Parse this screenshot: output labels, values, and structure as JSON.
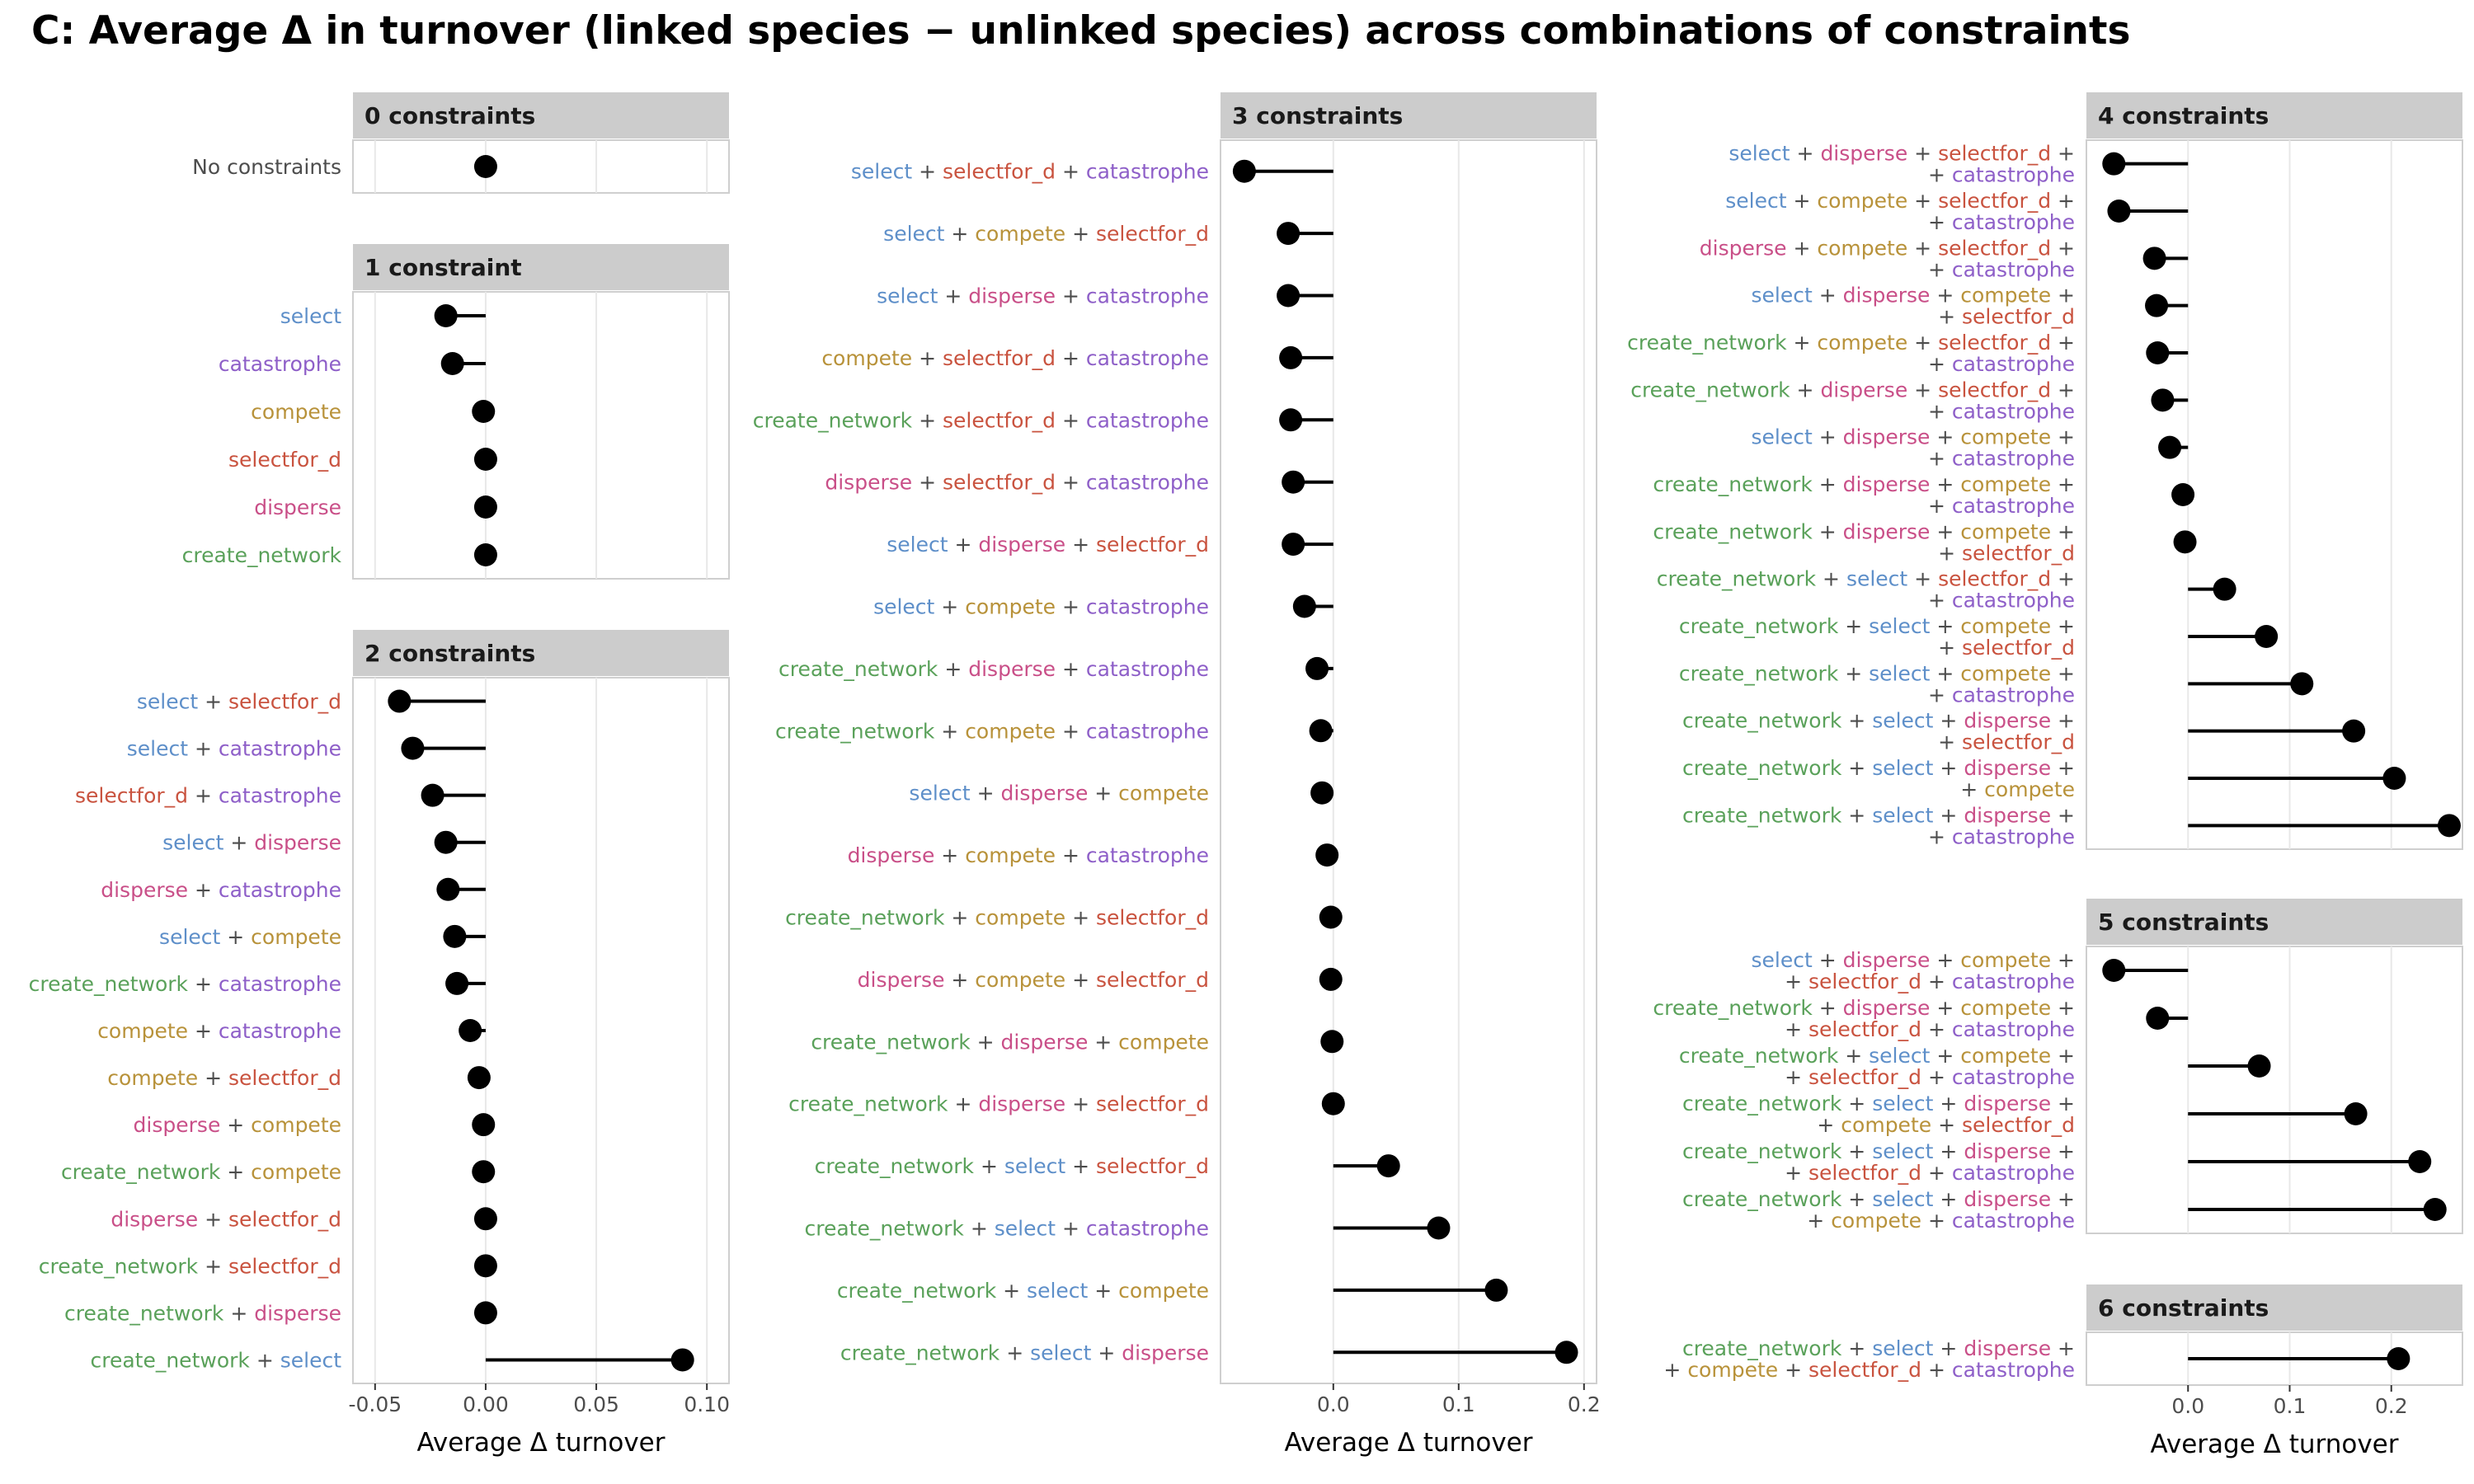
{
  "title": "C: Average Δ in turnover (linked species − unlinked species) across combinations of constraints",
  "colors": {
    "select": "#5e8fc9",
    "catastrophe": "#8e5fc8",
    "compete": "#b8923a",
    "selectfor_d": "#c9533f",
    "disperse": "#c94f88",
    "create_network": "#5aa15a",
    "plus": "#4d4d4d",
    "plain": "#4d4d4d",
    "strip": "#cccccc",
    "grid": "#e8e8e8",
    "border": "#cfcfcf",
    "point": "#000000"
  },
  "x_axis_label": "Average Δ turnover",
  "chart_data": [
    {
      "type": "lollipop",
      "column": "left",
      "facet": "0 constraints",
      "xlim": [
        -0.06,
        0.11
      ],
      "ticks": [],
      "tick_labels": [],
      "gridlines": [
        -0.05,
        0.0,
        0.05,
        0.1
      ],
      "rows": [
        {
          "terms": [
            "No constraints"
          ],
          "value": 0.0
        }
      ]
    },
    {
      "type": "lollipop",
      "column": "left",
      "facet": "1 constraint",
      "xlim": [
        -0.06,
        0.11
      ],
      "ticks": [],
      "tick_labels": [],
      "gridlines": [
        -0.05,
        0.0,
        0.05,
        0.1
      ],
      "rows": [
        {
          "terms": [
            "select"
          ],
          "value": -0.018
        },
        {
          "terms": [
            "catastrophe"
          ],
          "value": -0.015
        },
        {
          "terms": [
            "compete"
          ],
          "value": -0.001
        },
        {
          "terms": [
            "selectfor_d"
          ],
          "value": 0.0
        },
        {
          "terms": [
            "disperse"
          ],
          "value": 0.0
        },
        {
          "terms": [
            "create_network"
          ],
          "value": 0.0
        }
      ]
    },
    {
      "type": "lollipop",
      "column": "left",
      "facet": "2 constraints",
      "xlim": [
        -0.06,
        0.11
      ],
      "ticks": [
        -0.05,
        0.0,
        0.05,
        0.1
      ],
      "tick_labels": [
        "-0.05",
        "0.00",
        "0.05",
        "0.10"
      ],
      "gridlines": [
        -0.05,
        0.0,
        0.05,
        0.1
      ],
      "rows": [
        {
          "terms": [
            "select",
            "selectfor_d"
          ],
          "value": -0.039
        },
        {
          "terms": [
            "select",
            "catastrophe"
          ],
          "value": -0.033
        },
        {
          "terms": [
            "selectfor_d",
            "catastrophe"
          ],
          "value": -0.024
        },
        {
          "terms": [
            "select",
            "disperse"
          ],
          "value": -0.018
        },
        {
          "terms": [
            "disperse",
            "catastrophe"
          ],
          "value": -0.017
        },
        {
          "terms": [
            "select",
            "compete"
          ],
          "value": -0.014
        },
        {
          "terms": [
            "create_network",
            "catastrophe"
          ],
          "value": -0.013
        },
        {
          "terms": [
            "compete",
            "catastrophe"
          ],
          "value": -0.007
        },
        {
          "terms": [
            "compete",
            "selectfor_d"
          ],
          "value": -0.003
        },
        {
          "terms": [
            "disperse",
            "compete"
          ],
          "value": -0.001
        },
        {
          "terms": [
            "create_network",
            "compete"
          ],
          "value": -0.001
        },
        {
          "terms": [
            "disperse",
            "selectfor_d"
          ],
          "value": 0.0
        },
        {
          "terms": [
            "create_network",
            "selectfor_d"
          ],
          "value": 0.0
        },
        {
          "terms": [
            "create_network",
            "disperse"
          ],
          "value": 0.0
        },
        {
          "terms": [
            "create_network",
            "select"
          ],
          "value": 0.089
        }
      ]
    },
    {
      "type": "lollipop",
      "column": "middle",
      "facet": "3 constraints",
      "xlim": [
        -0.09,
        0.21
      ],
      "ticks": [
        0.0,
        0.1,
        0.2
      ],
      "tick_labels": [
        "0.0",
        "0.1",
        "0.2"
      ],
      "gridlines": [
        0.0,
        0.1,
        0.2
      ],
      "rows": [
        {
          "terms": [
            "select",
            "selectfor_d",
            "catastrophe"
          ],
          "value": -0.071
        },
        {
          "terms": [
            "select",
            "compete",
            "selectfor_d"
          ],
          "value": -0.036
        },
        {
          "terms": [
            "select",
            "disperse",
            "catastrophe"
          ],
          "value": -0.036
        },
        {
          "terms": [
            "compete",
            "selectfor_d",
            "catastrophe"
          ],
          "value": -0.034
        },
        {
          "terms": [
            "create_network",
            "selectfor_d",
            "catastrophe"
          ],
          "value": -0.034
        },
        {
          "terms": [
            "disperse",
            "selectfor_d",
            "catastrophe"
          ],
          "value": -0.032
        },
        {
          "terms": [
            "select",
            "disperse",
            "selectfor_d"
          ],
          "value": -0.032
        },
        {
          "terms": [
            "select",
            "compete",
            "catastrophe"
          ],
          "value": -0.023
        },
        {
          "terms": [
            "create_network",
            "disperse",
            "catastrophe"
          ],
          "value": -0.013
        },
        {
          "terms": [
            "create_network",
            "compete",
            "catastrophe"
          ],
          "value": -0.01
        },
        {
          "terms": [
            "select",
            "disperse",
            "compete"
          ],
          "value": -0.009
        },
        {
          "terms": [
            "disperse",
            "compete",
            "catastrophe"
          ],
          "value": -0.005
        },
        {
          "terms": [
            "create_network",
            "compete",
            "selectfor_d"
          ],
          "value": -0.002
        },
        {
          "terms": [
            "disperse",
            "compete",
            "selectfor_d"
          ],
          "value": -0.002
        },
        {
          "terms": [
            "create_network",
            "disperse",
            "compete"
          ],
          "value": -0.001
        },
        {
          "terms": [
            "create_network",
            "disperse",
            "selectfor_d"
          ],
          "value": 0.0
        },
        {
          "terms": [
            "create_network",
            "select",
            "selectfor_d"
          ],
          "value": 0.044
        },
        {
          "terms": [
            "create_network",
            "select",
            "catastrophe"
          ],
          "value": 0.084
        },
        {
          "terms": [
            "create_network",
            "select",
            "compete"
          ],
          "value": 0.13
        },
        {
          "terms": [
            "create_network",
            "select",
            "disperse"
          ],
          "value": 0.186
        }
      ]
    },
    {
      "type": "lollipop",
      "column": "right",
      "facet": "4 constraints",
      "xlim": [
        -0.1,
        0.27
      ],
      "ticks": [],
      "tick_labels": [],
      "gridlines": [
        0.0,
        0.1,
        0.2
      ],
      "rows": [
        {
          "terms": [
            "select",
            "disperse",
            "selectfor_d",
            "catastrophe"
          ],
          "value": -0.073
        },
        {
          "terms": [
            "select",
            "compete",
            "selectfor_d",
            "catastrophe"
          ],
          "value": -0.068
        },
        {
          "terms": [
            "disperse",
            "compete",
            "selectfor_d",
            "catastrophe"
          ],
          "value": -0.033
        },
        {
          "terms": [
            "select",
            "disperse",
            "compete",
            "selectfor_d"
          ],
          "value": -0.031
        },
        {
          "terms": [
            "create_network",
            "compete",
            "selectfor_d",
            "catastrophe"
          ],
          "value": -0.03
        },
        {
          "terms": [
            "create_network",
            "disperse",
            "selectfor_d",
            "catastrophe"
          ],
          "value": -0.025
        },
        {
          "terms": [
            "select",
            "disperse",
            "compete",
            "catastrophe"
          ],
          "value": -0.018
        },
        {
          "terms": [
            "create_network",
            "disperse",
            "compete",
            "catastrophe"
          ],
          "value": -0.005
        },
        {
          "terms": [
            "create_network",
            "disperse",
            "compete",
            "selectfor_d"
          ],
          "value": -0.003
        },
        {
          "terms": [
            "create_network",
            "select",
            "selectfor_d",
            "catastrophe"
          ],
          "value": 0.036
        },
        {
          "terms": [
            "create_network",
            "select",
            "compete",
            "selectfor_d"
          ],
          "value": 0.077
        },
        {
          "terms": [
            "create_network",
            "select",
            "compete",
            "catastrophe"
          ],
          "value": 0.112
        },
        {
          "terms": [
            "create_network",
            "select",
            "disperse",
            "selectfor_d"
          ],
          "value": 0.163
        },
        {
          "terms": [
            "create_network",
            "select",
            "disperse",
            "compete"
          ],
          "value": 0.203
        },
        {
          "terms": [
            "create_network",
            "select",
            "disperse",
            "catastrophe"
          ],
          "value": 0.257
        }
      ]
    },
    {
      "type": "lollipop",
      "column": "right",
      "facet": "5 constraints",
      "xlim": [
        -0.1,
        0.27
      ],
      "ticks": [],
      "tick_labels": [],
      "gridlines": [
        0.0,
        0.1,
        0.2
      ],
      "rows": [
        {
          "terms": [
            "select",
            "disperse",
            "compete",
            "selectfor_d",
            "catastrophe"
          ],
          "value": -0.073
        },
        {
          "terms": [
            "create_network",
            "disperse",
            "compete",
            "selectfor_d",
            "catastrophe"
          ],
          "value": -0.03
        },
        {
          "terms": [
            "create_network",
            "select",
            "compete",
            "selectfor_d",
            "catastrophe"
          ],
          "value": 0.07
        },
        {
          "terms": [
            "create_network",
            "select",
            "disperse",
            "compete",
            "selectfor_d"
          ],
          "value": 0.165
        },
        {
          "terms": [
            "create_network",
            "select",
            "disperse",
            "selectfor_d",
            "catastrophe"
          ],
          "value": 0.228
        },
        {
          "terms": [
            "create_network",
            "select",
            "disperse",
            "compete",
            "catastrophe"
          ],
          "value": 0.243
        }
      ]
    },
    {
      "type": "lollipop",
      "column": "right",
      "facet": "6 constraints",
      "xlim": [
        -0.1,
        0.27
      ],
      "ticks": [
        0.0,
        0.1,
        0.2
      ],
      "tick_labels": [
        "0.0",
        "0.1",
        "0.2"
      ],
      "gridlines": [
        0.0,
        0.1,
        0.2
      ],
      "rows": [
        {
          "terms": [
            "create_network",
            "select",
            "disperse",
            "compete",
            "selectfor_d",
            "catastrophe"
          ],
          "value": 0.207
        }
      ]
    }
  ]
}
